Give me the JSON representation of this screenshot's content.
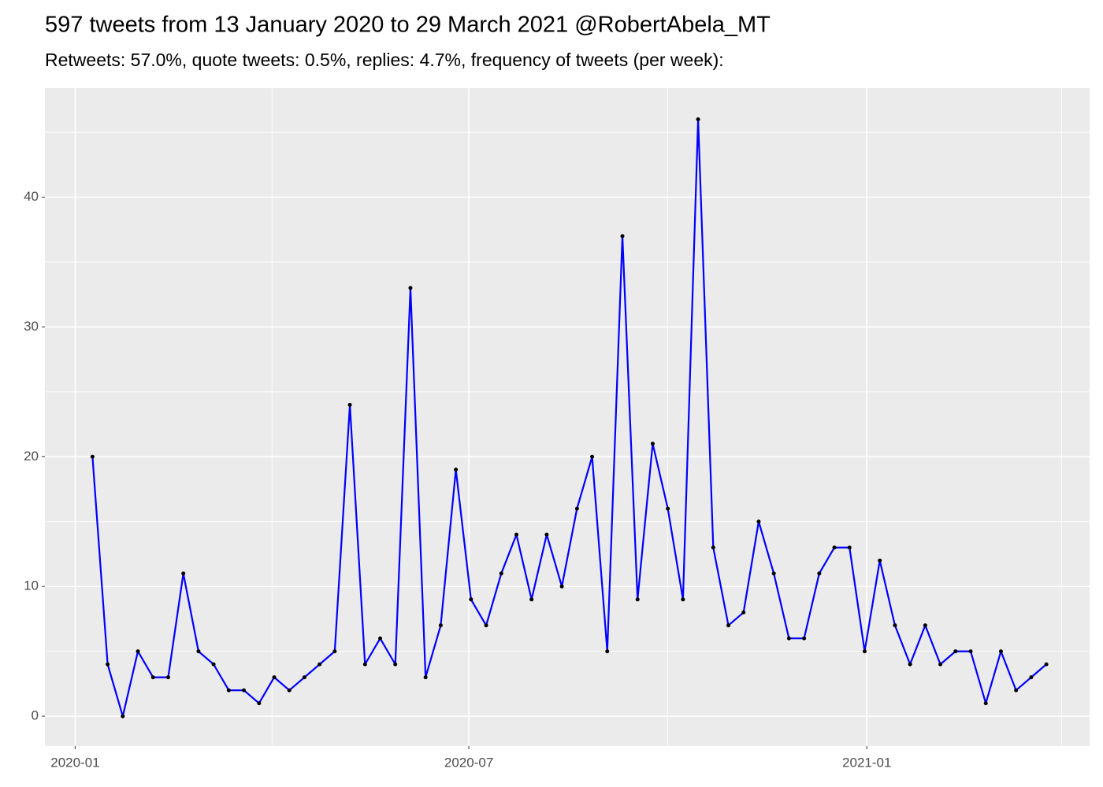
{
  "chart_data": {
    "type": "line",
    "title": "597 tweets from 13 January 2020 to 29 March 2021 @RobertAbela_MT",
    "subtitle": "Retweets: 57.0%, quote tweets: 0.5%, replies: 4.7%, frequency of tweets (per week):",
    "x": [
      "2020-01-09",
      "2020-01-16",
      "2020-01-23",
      "2020-01-30",
      "2020-02-06",
      "2020-02-13",
      "2020-02-20",
      "2020-02-27",
      "2020-03-05",
      "2020-03-12",
      "2020-03-19",
      "2020-03-26",
      "2020-04-02",
      "2020-04-09",
      "2020-04-16",
      "2020-04-23",
      "2020-04-30",
      "2020-05-07",
      "2020-05-14",
      "2020-05-21",
      "2020-05-28",
      "2020-06-04",
      "2020-06-11",
      "2020-06-18",
      "2020-06-25",
      "2020-07-02",
      "2020-07-09",
      "2020-07-16",
      "2020-07-23",
      "2020-07-30",
      "2020-08-06",
      "2020-08-13",
      "2020-08-20",
      "2020-08-27",
      "2020-09-03",
      "2020-09-10",
      "2020-09-17",
      "2020-09-24",
      "2020-10-01",
      "2020-10-08",
      "2020-10-15",
      "2020-10-22",
      "2020-10-29",
      "2020-11-05",
      "2020-11-12",
      "2020-11-19",
      "2020-11-26",
      "2020-12-03",
      "2020-12-10",
      "2020-12-17",
      "2020-12-24",
      "2020-12-31",
      "2021-01-07",
      "2021-01-14",
      "2021-01-21",
      "2021-01-28",
      "2021-02-04",
      "2021-02-11",
      "2021-02-18",
      "2021-02-25",
      "2021-03-04",
      "2021-03-11",
      "2021-03-18",
      "2021-03-25"
    ],
    "values": [
      20,
      4,
      0,
      5,
      3,
      3,
      11,
      5,
      4,
      2,
      2,
      1,
      3,
      2,
      3,
      4,
      5,
      24,
      4,
      6,
      4,
      33,
      3,
      7,
      19,
      9,
      7,
      11,
      14,
      9,
      14,
      10,
      16,
      20,
      5,
      37,
      9,
      21,
      16,
      9,
      46,
      13,
      7,
      8,
      15,
      11,
      6,
      6,
      11,
      13,
      13,
      5,
      12,
      7,
      4,
      7,
      4,
      5,
      5,
      1,
      5,
      2,
      3,
      4
    ],
    "color": "#0000ff",
    "point_color": "#000000",
    "xlim": [
      "2019-12-18",
      "2021-04-14"
    ],
    "xticks": [
      {
        "value": "2020-01-01",
        "label": "2020-01"
      },
      {
        "value": "2020-07-01",
        "label": "2020-07"
      },
      {
        "value": "2021-01-01",
        "label": "2021-01"
      }
    ],
    "xminor": [
      "2020-04-01",
      "2020-10-01",
      "2021-04-01"
    ],
    "ylim": [
      -2.3,
      48.4
    ],
    "yticks": [
      0,
      10,
      20,
      30,
      40
    ],
    "yminor": [
      5,
      15,
      25,
      35,
      45
    ],
    "grid": true
  }
}
